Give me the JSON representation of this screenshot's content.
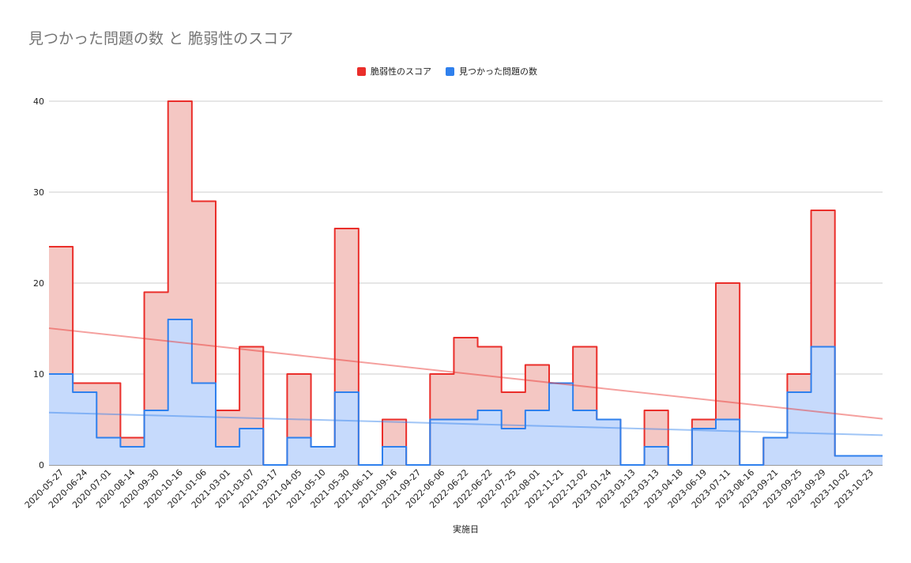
{
  "chart_data": {
    "type": "area",
    "title": "見つかった問題の数 と 脆弱性のスコア",
    "xlabel": "実施日",
    "ylabel": "",
    "ylim": [
      0,
      40
    ],
    "yticks": [
      0,
      10,
      20,
      30,
      40
    ],
    "grid": true,
    "legend_position": "top",
    "categories": [
      "2020-05-27",
      "2020-06-24",
      "2020-07-01",
      "2020-08-14",
      "2020-09-30",
      "2020-10-16",
      "2021-01-06",
      "2021-03-01",
      "2021-03-07",
      "2021-03-17",
      "2021-04-05",
      "2021-05-10",
      "2021-05-30",
      "2021-06-11",
      "2021-09-16",
      "2021-09-27",
      "2022-06-06",
      "2022-06-22",
      "2022-06-22",
      "2022-07-25",
      "2022-08-01",
      "2022-11-21",
      "2022-12-02",
      "2023-01-24",
      "2023-03-13",
      "2023-03-13",
      "2023-04-18",
      "2023-06-19",
      "2023-07-11",
      "2023-08-16",
      "2023-09-21",
      "2023-09-25",
      "2023-09-29",
      "2023-10-02",
      "2023-10-23"
    ],
    "series": [
      {
        "name": "脆弱性のスコア",
        "color": "#ea2e2a",
        "fill": "#f4c7c3",
        "values": [
          24,
          9,
          9,
          3,
          19,
          40,
          29,
          6,
          13,
          0,
          10,
          2,
          26,
          0,
          5,
          0,
          10,
          14,
          13,
          8,
          11,
          9,
          13,
          5,
          0,
          6,
          0,
          5,
          20,
          0,
          3,
          10,
          28,
          1,
          1
        ],
        "trendline": true
      },
      {
        "name": "見つかった問題の数",
        "color": "#2f80ed",
        "fill": "#c6dafc",
        "values": [
          10,
          8,
          3,
          2,
          6,
          16,
          9,
          2,
          4,
          0,
          3,
          2,
          8,
          0,
          2,
          0,
          5,
          5,
          6,
          4,
          6,
          9,
          6,
          5,
          0,
          2,
          0,
          4,
          5,
          0,
          3,
          8,
          13,
          1,
          1
        ],
        "trendline": true
      }
    ]
  }
}
